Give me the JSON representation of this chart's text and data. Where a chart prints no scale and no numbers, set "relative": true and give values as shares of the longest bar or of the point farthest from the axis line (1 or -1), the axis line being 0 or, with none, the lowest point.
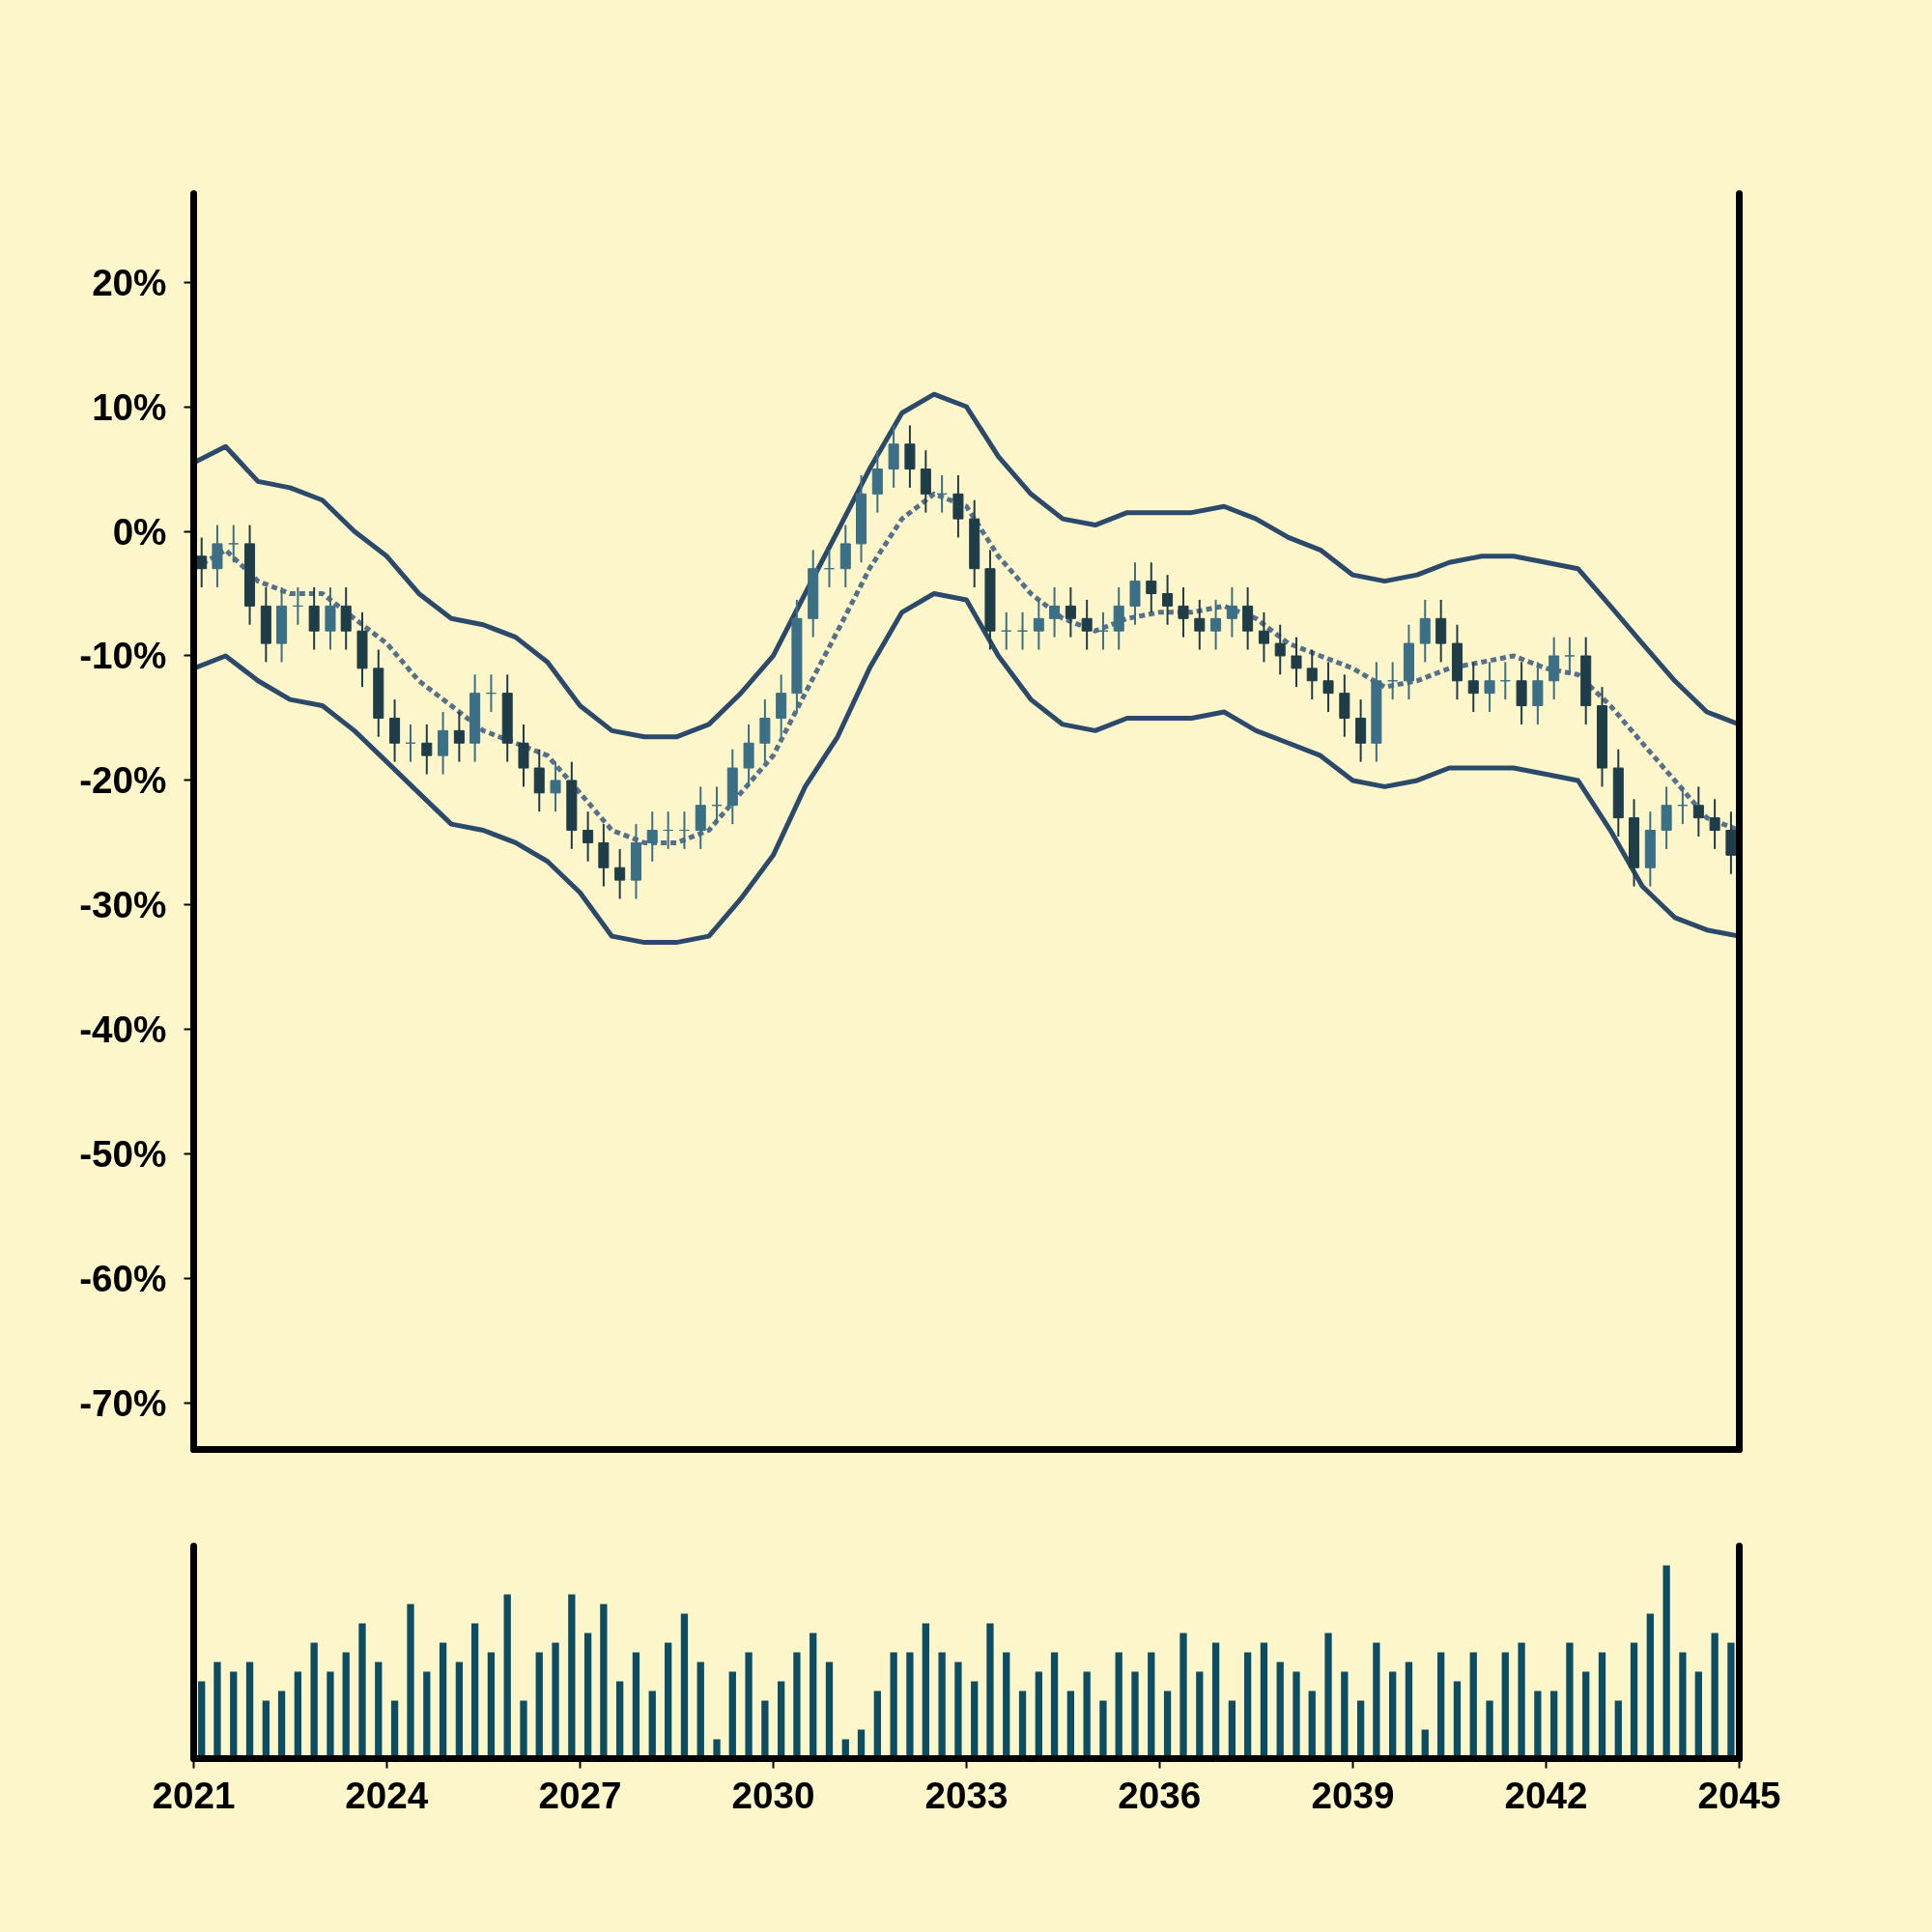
{
  "chart_data": [
    {
      "type": "candlestick",
      "ylim": [
        -73.7,
        27.1
      ],
      "xlim": [
        "2021",
        "2045"
      ],
      "xticks": [
        "2021",
        "2024",
        "2027",
        "2030",
        "2033",
        "2036",
        "2039",
        "2042",
        "2045"
      ],
      "tick_labels": "y",
      "yticks": [
        {
          "value": -70,
          "label": "-70%"
        },
        {
          "value": -60,
          "label": "-60%"
        },
        {
          "value": -50,
          "label": "-50%"
        },
        {
          "value": -40,
          "label": "-40%"
        },
        {
          "value": -30,
          "label": "-30%"
        },
        {
          "value": -20,
          "label": "-20%"
        },
        {
          "value": -10,
          "label": "-10%"
        },
        {
          "value": 0,
          "label": "0%"
        },
        {
          "value": 10,
          "label": "10%"
        },
        {
          "value": 20,
          "label": "20%"
        }
      ],
      "series": [
        {
          "type": "candlestick",
          "colors": [
            "#1f3d49",
            "#3a6f85",
            "#3a6f85",
            "#1f3d49",
            "#1f3d49",
            "#3a6f85",
            "#3a6f85",
            "#1f3d49",
            "#3a6f85",
            "#1f3d49",
            "#1f3d49",
            "#1f3d49",
            "#1f3d49",
            "#3a6f85",
            "#1f3d49",
            "#3a6f85",
            "#1f3d49",
            "#3a6f85",
            "#3a6f85",
            "#1f3d49",
            "#1f3d49",
            "#1f3d49",
            "#3a6f85",
            "#1f3d49",
            "#1f3d49",
            "#1f3d49",
            "#1f3d49",
            "#3a6f85",
            "#3a6f85",
            "#3a6f85",
            "#3a6f85",
            "#3a6f85",
            "#3a6f85",
            "#3a6f85",
            "#3a6f85",
            "#3a6f85",
            "#3a6f85",
            "#3a6f85",
            "#3a6f85",
            "#3a6f85",
            "#3a6f85",
            "#3a6f85",
            "#3a6f85",
            "#3a6f85",
            "#1f3d49",
            "#1f3d49",
            "#3a6f85",
            "#1f3d49",
            "#1f3d49",
            "#1f3d49",
            "#3a6f85",
            "#3a6f85",
            "#3a6f85",
            "#3a6f85",
            "#1f3d49",
            "#1f3d49",
            "#3a6f85",
            "#3a6f85",
            "#3a6f85",
            "#1f3d49",
            "#1f3d49",
            "#1f3d49",
            "#1f3d49",
            "#3a6f85",
            "#3a6f85",
            "#1f3d49",
            "#1f3d49",
            "#1f3d49",
            "#1f3d49",
            "#1f3d49",
            "#1f3d49",
            "#1f3d49",
            "#1f3d49",
            "#3a6f85",
            "#3a6f85",
            "#3a6f85",
            "#3a6f85",
            "#1f3d49",
            "#1f3d49",
            "#1f3d49",
            "#3a6f85",
            "#3a6f85",
            "#1f3d49",
            "#3a6f85",
            "#3a6f85",
            "#3a6f85",
            "#1f3d49",
            "#1f3d49",
            "#1f3d49",
            "#1f3d49",
            "#3a6f85",
            "#3a6f85",
            "#3a6f85",
            "#1f3d49",
            "#1f3d49",
            "#1f3d49"
          ],
          "x": [
            "2021-02-15",
            "2021-05-15",
            "2021-08-15",
            "2021-11-15",
            "2022-02-15",
            "2022-05-15",
            "2022-08-15",
            "2022-11-15",
            "2023-02-15",
            "2023-05-15",
            "2023-08-15",
            "2023-11-15",
            "2024-02-15",
            "2024-05-15",
            "2024-08-15",
            "2024-11-15",
            "2025-02-15",
            "2025-05-15",
            "2025-08-15",
            "2025-11-15",
            "2026-02-15",
            "2026-05-15",
            "2026-08-15",
            "2026-11-15",
            "2027-02-15",
            "2027-05-15",
            "2027-08-15",
            "2027-11-15",
            "2028-02-15",
            "2028-05-15",
            "2028-08-15",
            "2028-11-15",
            "2029-02-15",
            "2029-05-15",
            "2029-08-15",
            "2029-11-15",
            "2030-02-15",
            "2030-05-15",
            "2030-08-15",
            "2030-11-15",
            "2031-02-15",
            "2031-05-15",
            "2031-08-15",
            "2031-11-15",
            "2032-02-15",
            "2032-05-15",
            "2032-08-15",
            "2032-11-15",
            "2033-02-15",
            "2033-05-15",
            "2033-08-15",
            "2033-11-15",
            "2034-02-15",
            "2034-05-15",
            "2034-08-15",
            "2034-11-15",
            "2035-02-15",
            "2035-05-15",
            "2035-08-15",
            "2035-11-15",
            "2036-02-15",
            "2036-05-15",
            "2036-08-15",
            "2036-11-15",
            "2037-02-15",
            "2037-05-15",
            "2037-08-15",
            "2037-11-15",
            "2038-02-15",
            "2038-05-15",
            "2038-08-15",
            "2038-11-15",
            "2039-02-15",
            "2039-05-15",
            "2039-08-15",
            "2039-11-15",
            "2040-02-15",
            "2040-05-15",
            "2040-08-15",
            "2040-11-15",
            "2041-02-15",
            "2041-05-15",
            "2041-08-15",
            "2041-11-15",
            "2042-02-15",
            "2042-05-15",
            "2042-08-15",
            "2042-11-15",
            "2043-02-15",
            "2043-05-15",
            "2043-08-15",
            "2043-11-15",
            "2044-02-15",
            "2044-05-15",
            "2044-08-15",
            "2044-11-15"
          ],
          "ohlc": [
            [
              -2,
              -0.5,
              -4.5,
              -3
            ],
            [
              -3,
              0.5,
              -4.5,
              -1
            ],
            [
              -1,
              0.5,
              -2.5,
              -1
            ],
            [
              -1,
              0.5,
              -7.5,
              -6
            ],
            [
              -6,
              -4.5,
              -10.5,
              -9
            ],
            [
              -9,
              -4.5,
              -10.5,
              -6
            ],
            [
              -6,
              -4.5,
              -7.5,
              -6
            ],
            [
              -6,
              -4.5,
              -9.5,
              -8
            ],
            [
              -8,
              -4.5,
              -9.5,
              -6
            ],
            [
              -6,
              -4.5,
              -9.5,
              -8
            ],
            [
              -8,
              -6.5,
              -12.5,
              -11
            ],
            [
              -11,
              -9.5,
              -16.5,
              -15
            ],
            [
              -15,
              -13.5,
              -18.5,
              -17
            ],
            [
              -17,
              -15.5,
              -18.5,
              -17
            ],
            [
              -17,
              -15.5,
              -19.5,
              -18
            ],
            [
              -18,
              -14.5,
              -19.5,
              -16
            ],
            [
              -16,
              -14.5,
              -18.5,
              -17
            ],
            [
              -17,
              -11.5,
              -18.5,
              -13
            ],
            [
              -13,
              -11.5,
              -14.5,
              -13
            ],
            [
              -13,
              -11.5,
              -18.5,
              -17
            ],
            [
              -17,
              -15.5,
              -20.5,
              -19
            ],
            [
              -19,
              -17.5,
              -22.5,
              -21
            ],
            [
              -21,
              -18.5,
              -22.5,
              -20
            ],
            [
              -20,
              -18.5,
              -25.5,
              -24
            ],
            [
              -24,
              -22.5,
              -26.5,
              -25
            ],
            [
              -25,
              -23.5,
              -28.5,
              -27
            ],
            [
              -27,
              -25.5,
              -29.5,
              -28
            ],
            [
              -28,
              -23.5,
              -29.5,
              -25
            ],
            [
              -25,
              -22.5,
              -26.5,
              -24
            ],
            [
              -24,
              -22.5,
              -25.5,
              -24
            ],
            [
              -24,
              -22.5,
              -25.5,
              -24
            ],
            [
              -24,
              -20.5,
              -25.5,
              -22
            ],
            [
              -22,
              -20.5,
              -23.5,
              -22
            ],
            [
              -22,
              -17.5,
              -23.5,
              -19
            ],
            [
              -19,
              -15.5,
              -20.5,
              -17
            ],
            [
              -17,
              -13.5,
              -18.5,
              -15
            ],
            [
              -15,
              -11.5,
              -16.5,
              -13
            ],
            [
              -13,
              -5.5,
              -14.5,
              -7
            ],
            [
              -7,
              -1.5,
              -8.5,
              -3
            ],
            [
              -3,
              -1.5,
              -4.5,
              -3
            ],
            [
              -3,
              0.5,
              -4.5,
              -1
            ],
            [
              -1,
              4.5,
              -2.5,
              3
            ],
            [
              3,
              6.5,
              1.5,
              5
            ],
            [
              5,
              8.5,
              3.5,
              7
            ],
            [
              7,
              8.5,
              3.5,
              5
            ],
            [
              5,
              6.5,
              1.5,
              3
            ],
            [
              3,
              4.5,
              1.5,
              3
            ],
            [
              3,
              4.5,
              -0.5,
              1
            ],
            [
              1,
              2.5,
              -4.5,
              -3
            ],
            [
              -3,
              -1.5,
              -9.5,
              -8
            ],
            [
              -8,
              -6.5,
              -9.5,
              -8
            ],
            [
              -8,
              -6.5,
              -9.5,
              -8
            ],
            [
              -8,
              -5.5,
              -9.5,
              -7
            ],
            [
              -7,
              -4.5,
              -8.5,
              -6
            ],
            [
              -6,
              -4.5,
              -8.5,
              -7
            ],
            [
              -7,
              -5.5,
              -9.5,
              -8
            ],
            [
              -8,
              -6.5,
              -9.5,
              -8
            ],
            [
              -8,
              -4.5,
              -9.5,
              -6
            ],
            [
              -6,
              -2.5,
              -7.5,
              -4
            ],
            [
              -4,
              -2.5,
              -6.5,
              -5
            ],
            [
              -5,
              -3.5,
              -7.5,
              -6
            ],
            [
              -6,
              -4.5,
              -8.5,
              -7
            ],
            [
              -7,
              -5.5,
              -9.5,
              -8
            ],
            [
              -8,
              -5.5,
              -9.5,
              -7
            ],
            [
              -7,
              -4.5,
              -8.5,
              -6
            ],
            [
              -6,
              -4.5,
              -9.5,
              -8
            ],
            [
              -8,
              -6.5,
              -10.5,
              -9
            ],
            [
              -9,
              -7.5,
              -11.5,
              -10
            ],
            [
              -10,
              -8.5,
              -12.5,
              -11
            ],
            [
              -11,
              -9.5,
              -13.5,
              -12
            ],
            [
              -12,
              -10.5,
              -14.5,
              -13
            ],
            [
              -13,
              -11.5,
              -16.5,
              -15
            ],
            [
              -15,
              -13.5,
              -18.5,
              -17
            ],
            [
              -17,
              -10.5,
              -18.5,
              -12
            ],
            [
              -12,
              -10.5,
              -13.5,
              -12
            ],
            [
              -12,
              -7.5,
              -13.5,
              -9
            ],
            [
              -9,
              -5.5,
              -10.5,
              -7
            ],
            [
              -7,
              -5.5,
              -10.5,
              -9
            ],
            [
              -9,
              -7.5,
              -13.5,
              -12
            ],
            [
              -12,
              -10.5,
              -14.5,
              -13
            ],
            [
              -13,
              -10.5,
              -14.5,
              -12
            ],
            [
              -12,
              -10.5,
              -13.5,
              -12
            ],
            [
              -12,
              -10.5,
              -15.5,
              -14
            ],
            [
              -14,
              -10.5,
              -15.5,
              -12
            ],
            [
              -12,
              -8.5,
              -13.5,
              -10
            ],
            [
              -10,
              -8.5,
              -11.5,
              -10
            ],
            [
              -10,
              -8.5,
              -15.5,
              -14
            ],
            [
              -14,
              -12.5,
              -20.5,
              -19
            ],
            [
              -19,
              -17.5,
              -24.5,
              -23
            ],
            [
              -23,
              -21.5,
              -28.5,
              -27
            ],
            [
              -27,
              -22.5,
              -28.5,
              -24
            ],
            [
              -24,
              -20.5,
              -25.5,
              -22
            ],
            [
              -22,
              -20.5,
              -23.5,
              -22
            ],
            [
              -22,
              -20.5,
              -24.5,
              -23
            ],
            [
              -23,
              -21.5,
              -25.5,
              -24
            ],
            [
              -24,
              -22.5,
              -27.5,
              -26
            ]
          ]
        },
        {
          "type": "line",
          "color": "#2b4a6b",
          "line_style": "solid",
          "x": [
            "2021-01",
            "2021-07",
            "2022-01",
            "2022-07",
            "2023-01",
            "2023-07",
            "2024-01",
            "2024-07",
            "2025-01",
            "2025-07",
            "2026-01",
            "2026-07",
            "2027-01",
            "2027-07",
            "2028-01",
            "2028-07",
            "2029-01",
            "2029-07",
            "2030-01",
            "2030-07",
            "2031-01",
            "2031-07",
            "2032-01",
            "2032-07",
            "2033-01",
            "2033-07",
            "2034-01",
            "2034-07",
            "2035-01",
            "2035-07",
            "2036-01",
            "2036-07",
            "2037-01",
            "2037-07",
            "2038-01",
            "2038-07",
            "2039-01",
            "2039-07",
            "2040-01",
            "2040-07",
            "2041-01",
            "2041-07",
            "2042-01",
            "2042-07",
            "2043-01",
            "2043-07",
            "2044-01",
            "2044-07",
            "2045-01"
          ],
          "values": [
            5.5,
            6.8,
            4,
            3.5,
            2.5,
            0,
            -2,
            -5,
            -7,
            -7.5,
            -8.5,
            -10.5,
            -14,
            -16,
            -16.5,
            -16.5,
            -15.5,
            -13,
            -10,
            -5,
            0,
            5,
            9.5,
            11,
            10,
            6,
            3,
            1,
            0.5,
            1.5,
            1.5,
            1.5,
            2,
            1,
            -0.5,
            -1.5,
            -3.5,
            -4,
            -3.5,
            -2.5,
            -2,
            -2,
            -2.5,
            -3,
            -6,
            -9,
            -12,
            -14.5,
            -15.5
          ]
        },
        {
          "type": "line",
          "color": "#55708a",
          "line_style": "dashed",
          "x": [
            "2021-01",
            "2021-07",
            "2022-01",
            "2022-07",
            "2023-01",
            "2023-07",
            "2024-01",
            "2024-07",
            "2025-01",
            "2025-07",
            "2026-01",
            "2026-07",
            "2027-01",
            "2027-07",
            "2028-01",
            "2028-07",
            "2029-01",
            "2029-07",
            "2030-01",
            "2030-07",
            "2031-01",
            "2031-07",
            "2032-01",
            "2032-07",
            "2033-01",
            "2033-07",
            "2034-01",
            "2034-07",
            "2035-01",
            "2035-07",
            "2036-01",
            "2036-07",
            "2037-01",
            "2037-07",
            "2038-01",
            "2038-07",
            "2039-01",
            "2039-07",
            "2040-01",
            "2040-07",
            "2041-01",
            "2041-07",
            "2042-01",
            "2042-07",
            "2043-01",
            "2043-07",
            "2044-01",
            "2044-07",
            "2045-01"
          ],
          "values": [
            -3,
            -1.5,
            -4,
            -5,
            -5,
            -7,
            -9,
            -12,
            -14,
            -16,
            -17,
            -18,
            -21,
            -24,
            -25,
            -25,
            -24,
            -21,
            -18,
            -13,
            -8,
            -3,
            1,
            3,
            2,
            -2,
            -5,
            -7,
            -8,
            -7,
            -6.5,
            -6.5,
            -6,
            -7,
            -9,
            -10,
            -11,
            -12.5,
            -12,
            -11,
            -10.5,
            -10,
            -11,
            -11.5,
            -14,
            -17,
            -20,
            -23,
            -24
          ]
        },
        {
          "type": "line",
          "color": "#2b4a6b",
          "line_style": "solid",
          "x": [
            "2021-01",
            "2021-07",
            "2022-01",
            "2022-07",
            "2023-01",
            "2023-07",
            "2024-01",
            "2024-07",
            "2025-01",
            "2025-07",
            "2026-01",
            "2026-07",
            "2027-01",
            "2027-07",
            "2028-01",
            "2028-07",
            "2029-01",
            "2029-07",
            "2030-01",
            "2030-07",
            "2031-01",
            "2031-07",
            "2032-01",
            "2032-07",
            "2033-01",
            "2033-07",
            "2034-01",
            "2034-07",
            "2035-01",
            "2035-07",
            "2036-01",
            "2036-07",
            "2037-01",
            "2037-07",
            "2038-01",
            "2038-07",
            "2039-01",
            "2039-07",
            "2040-01",
            "2040-07",
            "2041-01",
            "2041-07",
            "2042-01",
            "2042-07",
            "2043-01",
            "2043-07",
            "2044-01",
            "2044-07",
            "2045-01"
          ],
          "values": [
            -11,
            -10,
            -12,
            -13.5,
            -14,
            -16,
            -18.5,
            -21,
            -23.5,
            -24,
            -25,
            -26.5,
            -29,
            -32.5,
            -33,
            -33,
            -32.5,
            -29.5,
            -26,
            -20.5,
            -16.5,
            -11,
            -6.5,
            -5,
            -5.5,
            -10,
            -13.5,
            -15.5,
            -16,
            -15,
            -15,
            -15,
            -14.5,
            -16,
            -17,
            -18,
            -20,
            -20.5,
            -20,
            -19,
            -19,
            -19,
            -19.5,
            -20,
            -24,
            -28.5,
            -31,
            -32,
            -32.5
          ]
        }
      ]
    },
    {
      "type": "bar",
      "relative": true,
      "color": "#0d4d63",
      "xlim": [
        "2021",
        "2045"
      ],
      "tick_labels": "x",
      "xticks": [
        "2021",
        "2024",
        "2027",
        "2030",
        "2033",
        "2036",
        "2039",
        "2042",
        "2045"
      ],
      "x": [
        "2021-02-15",
        "2021-05-15",
        "2021-08-15",
        "2021-11-15",
        "2022-02-15",
        "2022-05-15",
        "2022-08-15",
        "2022-11-15",
        "2023-02-15",
        "2023-05-15",
        "2023-08-15",
        "2023-11-15",
        "2024-02-15",
        "2024-05-15",
        "2024-08-15",
        "2024-11-15",
        "2025-02-15",
        "2025-05-15",
        "2025-08-15",
        "2025-11-15",
        "2026-02-15",
        "2026-05-15",
        "2026-08-15",
        "2026-11-15",
        "2027-02-15",
        "2027-05-15",
        "2027-08-15",
        "2027-11-15",
        "2028-02-15",
        "2028-05-15",
        "2028-08-15",
        "2028-11-15",
        "2029-02-15",
        "2029-05-15",
        "2029-08-15",
        "2029-11-15",
        "2030-02-15",
        "2030-05-15",
        "2030-08-15",
        "2030-11-15",
        "2031-02-15",
        "2031-05-15",
        "2031-08-15",
        "2031-11-15",
        "2032-02-15",
        "2032-05-15",
        "2032-08-15",
        "2032-11-15",
        "2033-02-15",
        "2033-05-15",
        "2033-08-15",
        "2033-11-15",
        "2034-02-15",
        "2034-05-15",
        "2034-08-15",
        "2034-11-15",
        "2035-02-15",
        "2035-05-15",
        "2035-08-15",
        "2035-11-15",
        "2036-02-15",
        "2036-05-15",
        "2036-08-15",
        "2036-11-15",
        "2037-02-15",
        "2037-05-15",
        "2037-08-15",
        "2037-11-15",
        "2038-02-15",
        "2038-05-15",
        "2038-08-15",
        "2038-11-15",
        "2039-02-15",
        "2039-05-15",
        "2039-08-15",
        "2039-11-15",
        "2040-02-15",
        "2040-05-15",
        "2040-08-15",
        "2040-11-15",
        "2041-02-15",
        "2041-05-15",
        "2041-08-15",
        "2041-11-15",
        "2042-02-15",
        "2042-05-15",
        "2042-08-15",
        "2042-11-15",
        "2043-02-15",
        "2043-05-15",
        "2043-08-15",
        "2043-11-15",
        "2044-02-15",
        "2044-05-15",
        "2044-08-15",
        "2044-11-15"
      ],
      "values": [
        0.4,
        0.5,
        0.45,
        0.5,
        0.3,
        0.35,
        0.45,
        0.6,
        0.45,
        0.55,
        0.7,
        0.5,
        0.3,
        0.8,
        0.45,
        0.6,
        0.5,
        0.7,
        0.55,
        0.85,
        0.3,
        0.55,
        0.6,
        0.85,
        0.65,
        0.8,
        0.4,
        0.55,
        0.35,
        0.6,
        0.75,
        0.5,
        0.1,
        0.45,
        0.55,
        0.3,
        0.4,
        0.55,
        0.65,
        0.5,
        0.1,
        0.15,
        0.35,
        0.55,
        0.55,
        0.7,
        0.55,
        0.5,
        0.4,
        0.7,
        0.55,
        0.35,
        0.45,
        0.55,
        0.35,
        0.45,
        0.3,
        0.55,
        0.45,
        0.55,
        0.35,
        0.65,
        0.45,
        0.6,
        0.3,
        0.55,
        0.6,
        0.5,
        0.45,
        0.35,
        0.65,
        0.45,
        0.3,
        0.6,
        0.45,
        0.5,
        0.15,
        0.55,
        0.4,
        0.55,
        0.3,
        0.55,
        0.6,
        0.35,
        0.35,
        0.6,
        0.45,
        0.55,
        0.3,
        0.6,
        0.75,
        1,
        0.55,
        0.45,
        0.65,
        0.6
      ]
    }
  ]
}
